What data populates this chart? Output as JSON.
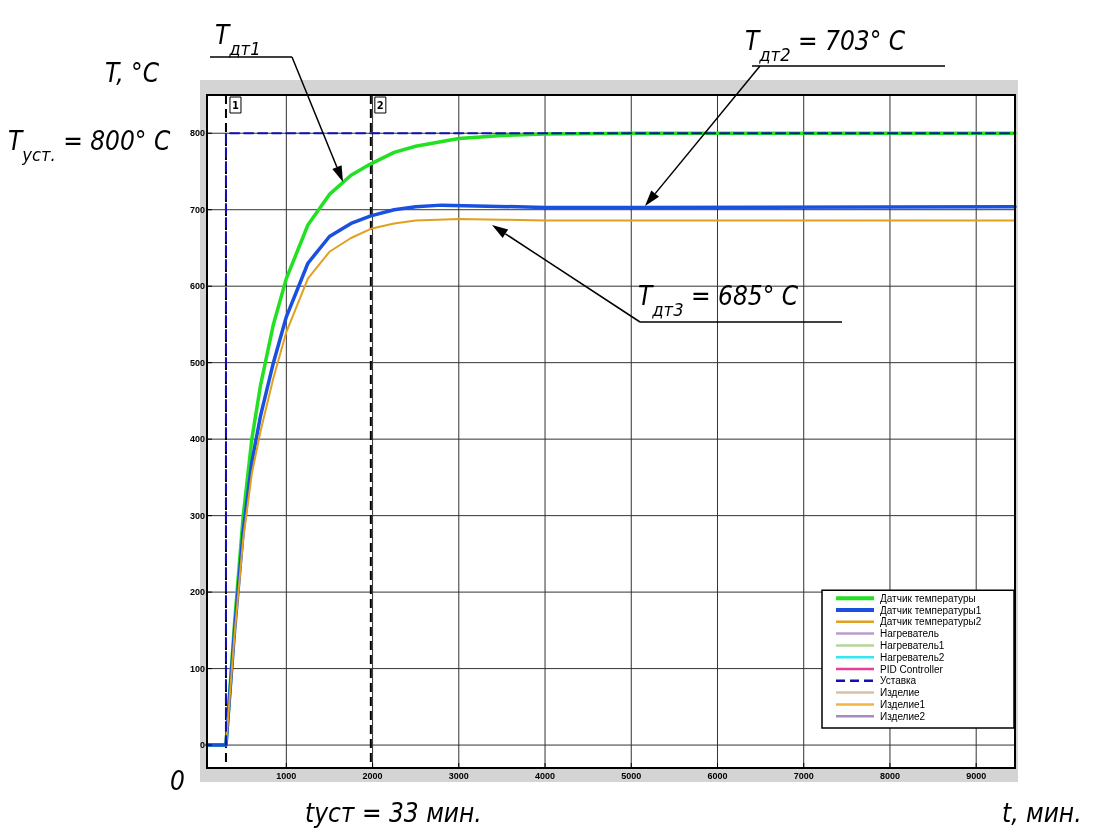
{
  "chart_data": {
    "type": "line",
    "xlabel": "t, мин.",
    "ylabel": "T, °C",
    "xlim": [
      80,
      9450
    ],
    "ylim": [
      -30,
      850
    ],
    "xticks": [
      1000,
      2000,
      3000,
      4000,
      5000,
      6000,
      7000,
      8000,
      9000
    ],
    "yticks": [
      0,
      100,
      200,
      300,
      400,
      500,
      600,
      700,
      800
    ],
    "grid": true,
    "legend": "bottom right",
    "marker": "none",
    "ref_lines": [
      {
        "axis": "x",
        "value": 300,
        "color": "#000000",
        "line_style": "dashed"
      },
      {
        "axis": "x",
        "value": 1980,
        "color": "#000000",
        "line_style": "dashed"
      }
    ],
    "annotations": [
      "T$_{дт1}$",
      "T$_{дт2}$ = 703° C",
      "T$_{дт3}$ = 685° C",
      "T$_{уст.}$ = 800° C",
      "tуст = 33 мин.",
      "0",
      "1",
      "2"
    ],
    "series": [
      {
        "name": "Датчик температуры",
        "color": "#22e022",
        "x": [
          80,
          300,
          400,
          500,
          600,
          700,
          850,
          1000,
          1250,
          1500,
          1750,
          1980,
          2250,
          2500,
          3000,
          3500,
          4000,
          5000,
          9450
        ],
        "values": [
          0,
          0,
          160,
          300,
          400,
          470,
          550,
          610,
          680,
          720,
          745,
          760,
          775,
          783,
          793,
          797,
          799,
          800,
          800
        ]
      },
      {
        "name": "Датчик температуры1",
        "color": "#1a50e0",
        "x": [
          80,
          300,
          400,
          500,
          600,
          700,
          850,
          1000,
          1250,
          1500,
          1750,
          1980,
          2250,
          2500,
          2800,
          3200,
          4000,
          5000,
          9450
        ],
        "values": [
          0,
          0,
          150,
          280,
          370,
          430,
          500,
          560,
          630,
          665,
          682,
          692,
          700,
          704,
          706,
          705,
          703,
          703,
          704
        ]
      },
      {
        "name": "Датчик температуры2",
        "color": "#e0a020",
        "x": [
          300,
          400,
          500,
          600,
          700,
          850,
          1000,
          1250,
          1500,
          1750,
          1980,
          2250,
          2500,
          3000,
          3500,
          4000,
          9450
        ],
        "values": [
          0,
          145,
          270,
          355,
          410,
          480,
          540,
          610,
          645,
          663,
          675,
          682,
          686,
          688,
          687,
          686,
          686
        ]
      },
      {
        "name": "Нагреватель",
        "color": "#b89ccf"
      },
      {
        "name": "Нагреватель1",
        "color": "#b5d49a"
      },
      {
        "name": "Нагреватель2",
        "color": "#33e6f0"
      },
      {
        "name": "PID Controller",
        "color": "#e8409a"
      },
      {
        "name": "Уставка",
        "color": "#1010b0",
        "line_style": "dashed",
        "x": [
          300,
          300,
          9450
        ],
        "values": [
          0,
          800,
          800
        ]
      },
      {
        "name": "Изделие",
        "color": "#d9bfa6"
      },
      {
        "name": "Изделие1",
        "color": "#f0b440"
      },
      {
        "name": "Изделие2",
        "color": "#a58cc0"
      }
    ]
  }
}
